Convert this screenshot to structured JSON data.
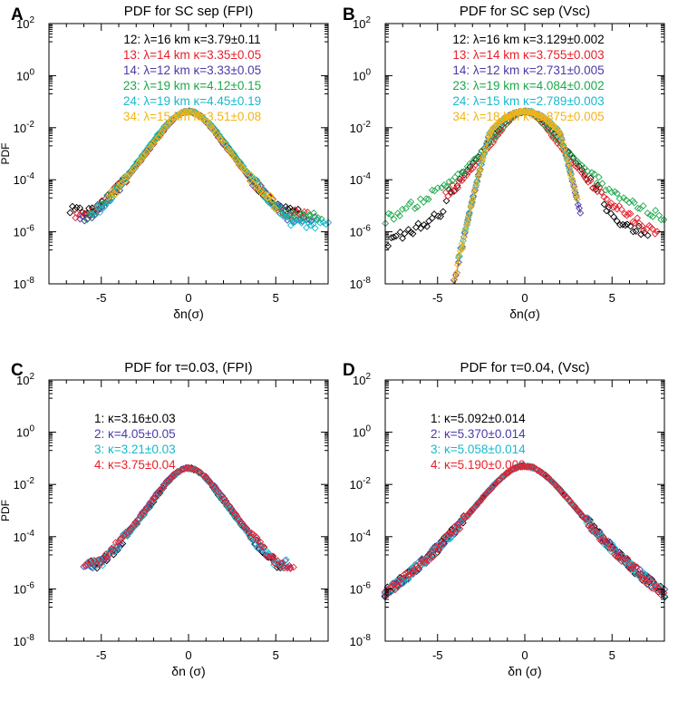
{
  "chart_data": [
    {
      "panel_label": "A",
      "type": "scatter",
      "title": "PDF for SC sep (FPI)",
      "xlabel": "δn(σ)",
      "ylabel": "PDF",
      "xlim": [
        -8,
        8
      ],
      "ylim_log10": [
        -8,
        2
      ],
      "x_ticks": [
        -5,
        0,
        5
      ],
      "x_tick_labels": [
        "-5",
        "0",
        "5"
      ],
      "y_ticks_log10": [
        2,
        0,
        -2,
        -4,
        -6,
        -8
      ],
      "y_tick_labels": [
        {
          "base": "10",
          "exp": "2"
        },
        {
          "base": "10",
          "exp": "0"
        },
        {
          "base": "10",
          "exp": "-2"
        },
        {
          "base": "10",
          "exp": "-4"
        },
        {
          "base": "10",
          "exp": "-6"
        },
        {
          "base": "10",
          "exp": "-8"
        }
      ],
      "legend_location": "upper-center",
      "series": [
        {
          "name": "12",
          "lambda_km": 16,
          "kappa": 3.79,
          "kappa_err": 0.11,
          "legend_text": "12: λ=16 km  κ=3.79±0.11",
          "color": "#000000",
          "x_range": [
            -6.8,
            6.4
          ],
          "tail_floor_log10": -5.2
        },
        {
          "name": "13",
          "lambda_km": 14,
          "kappa": 3.35,
          "kappa_err": 0.05,
          "legend_text": "13: λ=14 km  κ=3.35±0.05",
          "color": "#e8202a",
          "x_range": [
            -6.5,
            6.8
          ],
          "tail_floor_log10": -5.3
        },
        {
          "name": "14",
          "lambda_km": 12,
          "kappa": 3.33,
          "kappa_err": 0.05,
          "legend_text": "14: λ=12 km  κ=3.33±0.05",
          "color": "#4a3aa8",
          "x_range": [
            -6.2,
            7.2
          ],
          "tail_floor_log10": -5.5
        },
        {
          "name": "23",
          "lambda_km": 19,
          "kappa": 4.12,
          "kappa_err": 0.15,
          "legend_text": "23: λ=19 km  κ=4.12±0.15",
          "color": "#1ea84b",
          "x_range": [
            -5.8,
            7.6
          ],
          "tail_floor_log10": -5.4
        },
        {
          "name": "24",
          "lambda_km": 19,
          "kappa": 4.45,
          "kappa_err": 0.19,
          "legend_text": "24: λ=19 km  κ=4.45±0.19",
          "color": "#18b8cc",
          "x_range": [
            -5.5,
            8.0
          ],
          "tail_floor_log10": -5.7
        },
        {
          "name": "34",
          "lambda_km": 15,
          "kappa": 3.51,
          "kappa_err": 0.08,
          "legend_text": "34: λ=15 km  κ=3.51±0.08",
          "color": "#f2b417",
          "x_range": [
            -4.6,
            5.0
          ],
          "tail_floor_log10": -5.8
        }
      ]
    },
    {
      "panel_label": "B",
      "type": "scatter",
      "title": "PDF for SC sep (Vsc)",
      "xlabel": "δn(σ)",
      "ylabel": "",
      "xlim": [
        -8,
        8
      ],
      "ylim_log10": [
        -8,
        2
      ],
      "x_ticks": [
        -5,
        0,
        5
      ],
      "x_tick_labels": [
        "-5",
        "0",
        "5"
      ],
      "y_ticks_log10": [
        2,
        0,
        -2,
        -4,
        -6,
        -8
      ],
      "y_tick_labels": [
        {
          "base": "10",
          "exp": "2"
        },
        {
          "base": "10",
          "exp": "0"
        },
        {
          "base": "10",
          "exp": "-2"
        },
        {
          "base": "10",
          "exp": "-4"
        },
        {
          "base": "10",
          "exp": "-6"
        },
        {
          "base": "10",
          "exp": "-8"
        }
      ],
      "legend_location": "upper-center",
      "series": [
        {
          "name": "12",
          "lambda_km": 16,
          "kappa": 3.129,
          "kappa_err": 0.002,
          "legend_text": "12: λ=16 km  κ=3.129±0.002",
          "color": "#000000",
          "x_range": [
            -7.8,
            7.0
          ]
        },
        {
          "name": "13",
          "lambda_km": 14,
          "kappa": 3.755,
          "kappa_err": 0.003,
          "legend_text": "13: λ=14 km  κ=3.755±0.003",
          "color": "#e8202a",
          "x_range": [
            -4.5,
            7.6
          ]
        },
        {
          "name": "14",
          "lambda_km": 12,
          "kappa": 2.731,
          "kappa_err": 0.005,
          "legend_text": "14: λ=12 km  κ=2.731±0.005",
          "color": "#4a3aa8",
          "x_range": [
            -4.2,
            3.2
          ]
        },
        {
          "name": "23",
          "lambda_km": 19,
          "kappa": 4.084,
          "kappa_err": 0.002,
          "legend_text": "23: λ=19 km  κ=4.084±0.002",
          "color": "#1ea84b",
          "x_range": [
            -8.0,
            8.0
          ]
        },
        {
          "name": "24",
          "lambda_km": 15,
          "kappa": 2.789,
          "kappa_err": 0.003,
          "legend_text": "24: λ=15 km  κ=2.789±0.003",
          "color": "#18b8cc",
          "x_range": [
            -3.8,
            3.0
          ]
        },
        {
          "name": "34",
          "lambda_km": 18,
          "kappa": 2.875,
          "kappa_err": 0.005,
          "legend_text": "34: λ=18 km  κ=2.875±0.005",
          "color": "#f2b417",
          "x_range": [
            -4.0,
            3.0
          ]
        }
      ]
    },
    {
      "panel_label": "C",
      "type": "scatter",
      "title": "PDF for τ=0.03, (FPI)",
      "xlabel": "δn (σ)",
      "ylabel": "PDF",
      "xlim": [
        -8,
        8
      ],
      "ylim_log10": [
        -8,
        2
      ],
      "x_ticks": [
        -5,
        0,
        5
      ],
      "x_tick_labels": [
        "-5",
        "0",
        "5"
      ],
      "y_ticks_log10": [
        2,
        0,
        -2,
        -4,
        -6,
        -8
      ],
      "y_tick_labels": [
        {
          "base": "10",
          "exp": "2"
        },
        {
          "base": "10",
          "exp": "0"
        },
        {
          "base": "10",
          "exp": "-2"
        },
        {
          "base": "10",
          "exp": "-4"
        },
        {
          "base": "10",
          "exp": "-6"
        },
        {
          "base": "10",
          "exp": "-8"
        }
      ],
      "legend_location": "upper-left",
      "series": [
        {
          "name": "1",
          "kappa": 3.16,
          "kappa_err": 0.03,
          "legend_text": "1: κ=3.16±0.03",
          "color": "#000000",
          "x_range": [
            -5.6,
            5.4
          ]
        },
        {
          "name": "2",
          "kappa": 4.05,
          "kappa_err": 0.05,
          "legend_text": "2: κ=4.05±0.05",
          "color": "#4a3aa8",
          "x_range": [
            -6.0,
            5.8
          ]
        },
        {
          "name": "3",
          "kappa": 3.21,
          "kappa_err": 0.03,
          "legend_text": "3: κ=3.21±0.03",
          "color": "#18b8cc",
          "x_range": [
            -5.8,
            5.6
          ]
        },
        {
          "name": "4",
          "kappa": 3.75,
          "kappa_err": 0.04,
          "legend_text": "4: κ=3.75±0.04",
          "color": "#e8202a",
          "x_range": [
            -5.9,
            6.0
          ]
        }
      ]
    },
    {
      "panel_label": "D",
      "type": "scatter",
      "title": "PDF for τ=0.04, (Vsc)",
      "xlabel": "δn (σ)",
      "ylabel": "",
      "xlim": [
        -8,
        8
      ],
      "ylim_log10": [
        -8,
        2
      ],
      "x_ticks": [
        -5,
        0,
        5
      ],
      "x_tick_labels": [
        "-5",
        "0",
        "5"
      ],
      "y_ticks_log10": [
        2,
        0,
        -2,
        -4,
        -6,
        -8
      ],
      "y_tick_labels": [
        {
          "base": "10",
          "exp": "2"
        },
        {
          "base": "10",
          "exp": "0"
        },
        {
          "base": "10",
          "exp": "-2"
        },
        {
          "base": "10",
          "exp": "-4"
        },
        {
          "base": "10",
          "exp": "-6"
        },
        {
          "base": "10",
          "exp": "-8"
        }
      ],
      "legend_location": "upper-left",
      "series": [
        {
          "name": "1",
          "kappa": 5.092,
          "kappa_err": 0.014,
          "legend_text": "1: κ=5.092±0.014",
          "color": "#000000",
          "x_range": [
            -8.0,
            8.0
          ]
        },
        {
          "name": "2",
          "kappa": 5.37,
          "kappa_err": 0.014,
          "legend_text": "2: κ=5.370±0.014",
          "color": "#4a3aa8",
          "x_range": [
            -8.0,
            8.0
          ]
        },
        {
          "name": "3",
          "kappa": 5.058,
          "kappa_err": 0.014,
          "legend_text": "3: κ=5.058±0.014",
          "color": "#18b8cc",
          "x_range": [
            -8.0,
            8.0
          ]
        },
        {
          "name": "4",
          "kappa": 5.19,
          "kappa_err": 0.009,
          "legend_text": "4: κ=5.190±0.009",
          "color": "#e8202a",
          "x_range": [
            -8.0,
            8.0
          ]
        }
      ]
    }
  ]
}
